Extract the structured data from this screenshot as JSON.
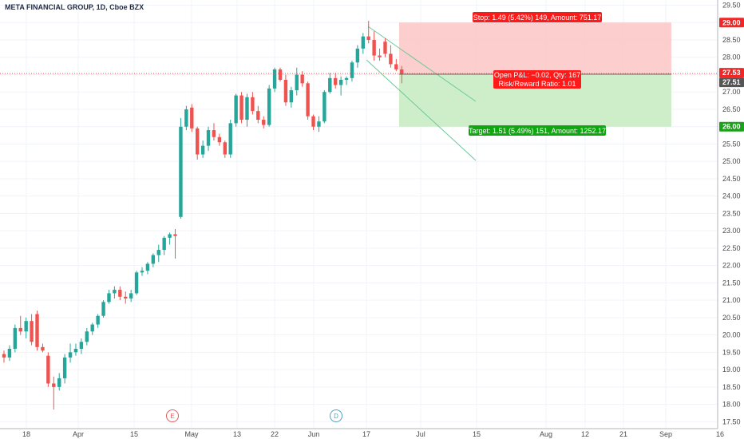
{
  "header": {
    "title": "META FINANCIAL GROUP, 1D, Cboe BZX"
  },
  "chart_data": {
    "type": "candlestick",
    "ylim": [
      17.3,
      29.65
    ],
    "y_ticks": [
      "17.50",
      "18.00",
      "18.50",
      "19.00",
      "19.50",
      "20.00",
      "20.50",
      "21.00",
      "21.50",
      "22.00",
      "22.50",
      "23.00",
      "23.50",
      "24.00",
      "24.50",
      "25.00",
      "25.50",
      "26.00",
      "26.50",
      "27.00",
      "27.50",
      "28.00",
      "28.50",
      "29.00",
      "29.50"
    ],
    "x_ticks": [
      "18",
      "Apr",
      "15",
      "May",
      "13",
      "22",
      "Jun",
      "17",
      "Jul",
      "15",
      "Aug",
      "12",
      "21",
      "Sep",
      "16"
    ],
    "candles": [
      {
        "o": 19.45,
        "h": 19.55,
        "l": 19.2,
        "c": 19.35
      },
      {
        "o": 19.35,
        "h": 19.7,
        "l": 19.25,
        "c": 19.6
      },
      {
        "o": 19.6,
        "h": 20.3,
        "l": 19.5,
        "c": 20.2
      },
      {
        "o": 20.2,
        "h": 20.55,
        "l": 20.0,
        "c": 20.1
      },
      {
        "o": 20.1,
        "h": 20.5,
        "l": 19.9,
        "c": 20.4
      },
      {
        "o": 20.4,
        "h": 20.6,
        "l": 19.7,
        "c": 19.8
      },
      {
        "o": 20.6,
        "h": 20.7,
        "l": 19.55,
        "c": 19.65
      },
      {
        "o": 19.65,
        "h": 19.75,
        "l": 19.5,
        "c": 19.55
      },
      {
        "o": 19.4,
        "h": 19.5,
        "l": 18.5,
        "c": 18.6
      },
      {
        "o": 18.6,
        "h": 18.8,
        "l": 17.85,
        "c": 18.5
      },
      {
        "o": 18.5,
        "h": 18.9,
        "l": 18.4,
        "c": 18.75
      },
      {
        "o": 18.75,
        "h": 19.45,
        "l": 18.6,
        "c": 19.35
      },
      {
        "o": 19.35,
        "h": 19.75,
        "l": 19.2,
        "c": 19.5
      },
      {
        "o": 19.5,
        "h": 19.75,
        "l": 19.4,
        "c": 19.6
      },
      {
        "o": 19.6,
        "h": 19.9,
        "l": 19.45,
        "c": 19.8
      },
      {
        "o": 19.8,
        "h": 20.2,
        "l": 19.7,
        "c": 20.1
      },
      {
        "o": 20.1,
        "h": 20.35,
        "l": 20.0,
        "c": 20.3
      },
      {
        "o": 20.3,
        "h": 20.6,
        "l": 20.2,
        "c": 20.55
      },
      {
        "o": 20.55,
        "h": 21.0,
        "l": 20.5,
        "c": 20.95
      },
      {
        "o": 20.95,
        "h": 21.3,
        "l": 20.9,
        "c": 21.2
      },
      {
        "o": 21.2,
        "h": 21.4,
        "l": 21.05,
        "c": 21.3
      },
      {
        "o": 21.3,
        "h": 21.4,
        "l": 21.0,
        "c": 21.1
      },
      {
        "o": 21.1,
        "h": 21.25,
        "l": 20.9,
        "c": 21.05
      },
      {
        "o": 21.05,
        "h": 21.3,
        "l": 20.95,
        "c": 21.2
      },
      {
        "o": 21.2,
        "h": 21.85,
        "l": 21.15,
        "c": 21.8
      },
      {
        "o": 21.8,
        "h": 21.95,
        "l": 21.7,
        "c": 21.85
      },
      {
        "o": 21.85,
        "h": 22.1,
        "l": 21.75,
        "c": 22.05
      },
      {
        "o": 22.05,
        "h": 22.35,
        "l": 21.95,
        "c": 22.3
      },
      {
        "o": 22.3,
        "h": 22.6,
        "l": 22.1,
        "c": 22.45
      },
      {
        "o": 22.45,
        "h": 22.85,
        "l": 22.3,
        "c": 22.8
      },
      {
        "o": 22.8,
        "h": 22.95,
        "l": 22.6,
        "c": 22.9
      },
      {
        "o": 22.9,
        "h": 23.05,
        "l": 22.2,
        "c": 22.85
      },
      {
        "o": 23.4,
        "h": 26.25,
        "l": 23.35,
        "c": 26.0
      },
      {
        "o": 26.0,
        "h": 26.6,
        "l": 25.9,
        "c": 26.5
      },
      {
        "o": 26.55,
        "h": 26.65,
        "l": 25.85,
        "c": 25.95
      },
      {
        "o": 25.95,
        "h": 26.0,
        "l": 25.05,
        "c": 25.2
      },
      {
        "o": 25.2,
        "h": 25.6,
        "l": 25.1,
        "c": 25.45
      },
      {
        "o": 25.45,
        "h": 26.0,
        "l": 25.3,
        "c": 25.9
      },
      {
        "o": 25.9,
        "h": 26.1,
        "l": 25.6,
        "c": 25.7
      },
      {
        "o": 25.7,
        "h": 25.8,
        "l": 25.45,
        "c": 25.55
      },
      {
        "o": 25.55,
        "h": 25.6,
        "l": 25.1,
        "c": 25.2
      },
      {
        "o": 25.2,
        "h": 26.2,
        "l": 25.1,
        "c": 26.1
      },
      {
        "o": 26.1,
        "h": 26.95,
        "l": 26.0,
        "c": 26.9
      },
      {
        "o": 26.9,
        "h": 27.0,
        "l": 26.1,
        "c": 26.2
      },
      {
        "o": 26.2,
        "h": 26.95,
        "l": 26.0,
        "c": 26.85
      },
      {
        "o": 26.85,
        "h": 27.0,
        "l": 26.35,
        "c": 26.45
      },
      {
        "o": 26.45,
        "h": 26.6,
        "l": 26.1,
        "c": 26.2
      },
      {
        "o": 26.2,
        "h": 26.3,
        "l": 25.95,
        "c": 26.05
      },
      {
        "o": 26.05,
        "h": 27.2,
        "l": 26.0,
        "c": 27.1
      },
      {
        "o": 27.1,
        "h": 27.7,
        "l": 27.0,
        "c": 27.65
      },
      {
        "o": 27.65,
        "h": 27.7,
        "l": 27.3,
        "c": 27.35
      },
      {
        "o": 27.35,
        "h": 27.5,
        "l": 26.6,
        "c": 26.7
      },
      {
        "o": 26.7,
        "h": 27.15,
        "l": 26.55,
        "c": 27.05
      },
      {
        "o": 27.05,
        "h": 27.7,
        "l": 26.9,
        "c": 27.5
      },
      {
        "o": 27.5,
        "h": 27.6,
        "l": 27.15,
        "c": 27.25
      },
      {
        "o": 27.25,
        "h": 27.3,
        "l": 26.2,
        "c": 26.3
      },
      {
        "o": 26.3,
        "h": 26.35,
        "l": 25.9,
        "c": 26.0
      },
      {
        "o": 26.0,
        "h": 26.3,
        "l": 25.85,
        "c": 26.15
      },
      {
        "o": 26.15,
        "h": 27.05,
        "l": 26.1,
        "c": 27.0
      },
      {
        "o": 27.0,
        "h": 27.55,
        "l": 26.95,
        "c": 27.4
      },
      {
        "o": 27.4,
        "h": 27.55,
        "l": 27.1,
        "c": 27.2
      },
      {
        "o": 27.2,
        "h": 27.45,
        "l": 26.9,
        "c": 27.35
      },
      {
        "o": 27.35,
        "h": 27.45,
        "l": 27.2,
        "c": 27.4
      },
      {
        "o": 27.4,
        "h": 27.9,
        "l": 27.3,
        "c": 27.85
      },
      {
        "o": 27.85,
        "h": 28.35,
        "l": 27.7,
        "c": 28.25
      },
      {
        "o": 28.25,
        "h": 28.7,
        "l": 28.1,
        "c": 28.6
      },
      {
        "o": 28.6,
        "h": 29.05,
        "l": 28.4,
        "c": 28.5
      },
      {
        "o": 28.5,
        "h": 28.75,
        "l": 27.9,
        "c": 28.05
      },
      {
        "o": 28.05,
        "h": 28.25,
        "l": 27.9,
        "c": 28.0
      },
      {
        "o": 28.45,
        "h": 28.55,
        "l": 28.0,
        "c": 28.1
      },
      {
        "o": 28.1,
        "h": 28.35,
        "l": 27.7,
        "c": 27.8
      },
      {
        "o": 27.8,
        "h": 27.95,
        "l": 27.6,
        "c": 27.65
      },
      {
        "o": 27.65,
        "h": 27.75,
        "l": 27.25,
        "c": 27.51
      }
    ],
    "position": {
      "entry": 27.51,
      "stop": 29.0,
      "target": 26.0,
      "stop_label": "Stop: 1.49 (5.42%) 149, Amount: 751.17",
      "target_label": "Target: 1.51 (5.49%) 151, Amount: 1252.17",
      "pnl_label": "Open P&L: −0.02, Qty: 167",
      "rr_label": "Risk/Reward Ratio: 1.01"
    },
    "price_tags": [
      {
        "value": "29.00",
        "color": "#ef2727"
      },
      {
        "value": "27.53",
        "color": "#ef2727"
      },
      {
        "value": "27.51",
        "color": "#555555"
      },
      {
        "value": "26.00",
        "color": "#1aa21a"
      }
    ],
    "event_markers": [
      {
        "label": "E",
        "color": "#e35d5d"
      },
      {
        "label": "D",
        "color": "#4fa3c2"
      }
    ],
    "colors": {
      "up": "#26a69a",
      "down": "#ef5350",
      "stop_zone": "#fbc5c5",
      "target_zone": "#c9ecc4",
      "stop_box": "#ff1a1a",
      "target_box": "#11a611",
      "pnl_box": "#ff1a1a",
      "channel": "#6bc99a",
      "current_line": "#ef5350"
    }
  }
}
